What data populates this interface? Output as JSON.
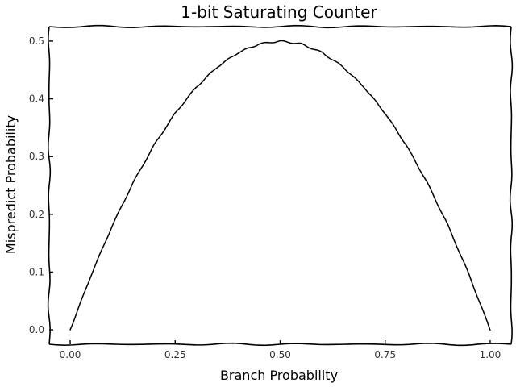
{
  "chart_data": {
    "type": "line",
    "title": "1-bit Saturating Counter",
    "xlabel": "Branch Probability",
    "ylabel": "Mispredict Probability",
    "xlim": [
      -0.05,
      1.05
    ],
    "ylim": [
      -0.025,
      0.525
    ],
    "xticks": [
      0.0,
      0.25,
      0.5,
      0.75,
      1.0
    ],
    "xtick_labels": [
      "0.00",
      "0.25",
      "0.50",
      "0.75",
      "1.00"
    ],
    "yticks": [
      0.0,
      0.1,
      0.2,
      0.3,
      0.4,
      0.5
    ],
    "ytick_labels": [
      "0.0",
      "0.1",
      "0.2",
      "0.3",
      "0.4",
      "0.5"
    ],
    "grid": false,
    "legend": "none",
    "style": "xkcd",
    "series": [
      {
        "color": "#000000",
        "x": [
          0.0,
          0.05,
          0.1,
          0.15,
          0.2,
          0.25,
          0.3,
          0.35,
          0.4,
          0.45,
          0.5,
          0.55,
          0.6,
          0.65,
          0.7,
          0.75,
          0.8,
          0.85,
          0.9,
          0.95,
          1.0
        ],
        "y": [
          0.0,
          0.095,
          0.18,
          0.255,
          0.32,
          0.375,
          0.42,
          0.455,
          0.48,
          0.495,
          0.5,
          0.495,
          0.48,
          0.455,
          0.42,
          0.375,
          0.32,
          0.255,
          0.18,
          0.095,
          0.0
        ]
      }
    ]
  }
}
